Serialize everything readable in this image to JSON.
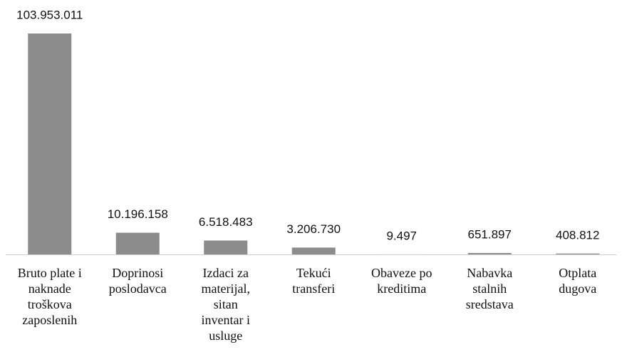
{
  "chart_data": {
    "type": "bar",
    "categories": [
      "Bruto plate i\nnaknade\ntroškova\nzaposlenih",
      "Doprinosi\nposlodavca",
      "Izdaci za\nmaterijal,\nsitan\ninventar i\nusluge",
      "Tekući\ntransferi",
      "Obaveze po\nkreditima",
      "Nabavka\nstalnih\nsredstava",
      "Otplata\ndugova"
    ],
    "values": [
      103953011,
      10196158,
      6518483,
      3206730,
      9497,
      651897,
      408812
    ],
    "value_labels": [
      "103.953.011",
      "10.196.158",
      "6.518.483",
      "3.206.730",
      "9.497",
      "651.897",
      "408.812"
    ],
    "color": "#8c8c8c"
  }
}
